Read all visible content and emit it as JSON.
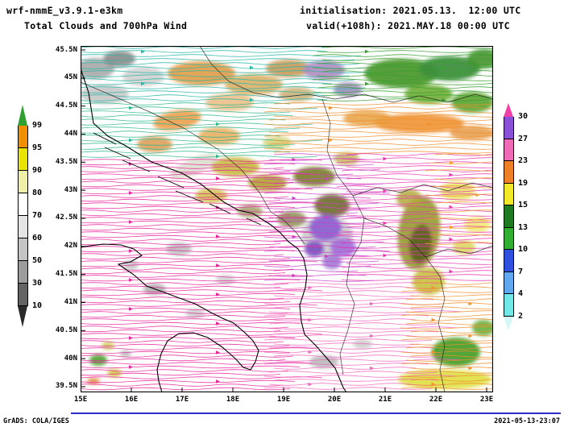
{
  "header": {
    "model": "wrf-nmmE_v3.9.1-e3km",
    "product": "Total Clouds and 700hPa Wind",
    "init": "initialisation: 2021.05.13.  12:00 UTC",
    "valid": "valid(+108h): 2021.MAY.18 00:00 UTC"
  },
  "footer": {
    "credit": "GrADS: COLA/IGES",
    "timestamp": "2021-05-13-23:07"
  },
  "axes": {
    "lat_labels": [
      "45.5N",
      "45N",
      "44.5N",
      "44N",
      "43.5N",
      "43N",
      "42.5N",
      "42N",
      "41.5N",
      "41N",
      "40.5N",
      "40N",
      "39.5N"
    ],
    "lon_labels": [
      "15E",
      "16E",
      "17E",
      "18E",
      "19E",
      "20E",
      "21E",
      "22E",
      "23E"
    ]
  },
  "colorbars": {
    "clouds": {
      "name": "total-cloud-cover-percent",
      "labels": [
        "99",
        "95",
        "90",
        "80",
        "70",
        "60",
        "50",
        "30",
        "10"
      ],
      "segment_colors_top_to_bottom": [
        "#f09000",
        "#e8e400",
        "#eef0a8",
        "#ffffff",
        "#e4e4e4",
        "#c4c4c4",
        "#9c9c9c",
        "#646464"
      ],
      "arrow_top": "#30a030",
      "arrow_bottom": "#2a2a2a"
    },
    "wind": {
      "name": "wind-speed",
      "labels": [
        "30",
        "27",
        "23",
        "19",
        "15",
        "13",
        "10",
        "7",
        "4",
        "2"
      ],
      "segment_colors_top_to_bottom": [
        "#8a50d8",
        "#f06ab8",
        "#f08028",
        "#f0e828",
        "#1f7a1f",
        "#30b030",
        "#3050e0",
        "#60a8f0",
        "#70e8e8"
      ],
      "arrow_top": "#f040a8",
      "arrow_bottom": "#d4f8f8"
    }
  },
  "chart_data": {
    "type": "map",
    "title": "Total Clouds and 700hPa Wind",
    "model": "wrf-nmmE_v3.9.1-e3km",
    "initialisation": "2021.05.13. 12:00 UTC",
    "valid": "valid(+108h): 2021.MAY.18 00:00 UTC",
    "region": {
      "lon_deg_east": [
        15,
        23
      ],
      "lat_deg_north": [
        39.5,
        45.5
      ]
    },
    "layers": [
      {
        "name": "total cloud cover shading",
        "units": "%",
        "levels": [
          10,
          30,
          50,
          60,
          70,
          80,
          90,
          95,
          99
        ]
      },
      {
        "name": "700 hPa wind streamlines colored by speed",
        "levels": [
          2,
          4,
          7,
          10,
          13,
          15,
          19,
          23,
          27,
          30
        ]
      }
    ],
    "renderer": "GrADS: COLA/IGES"
  }
}
